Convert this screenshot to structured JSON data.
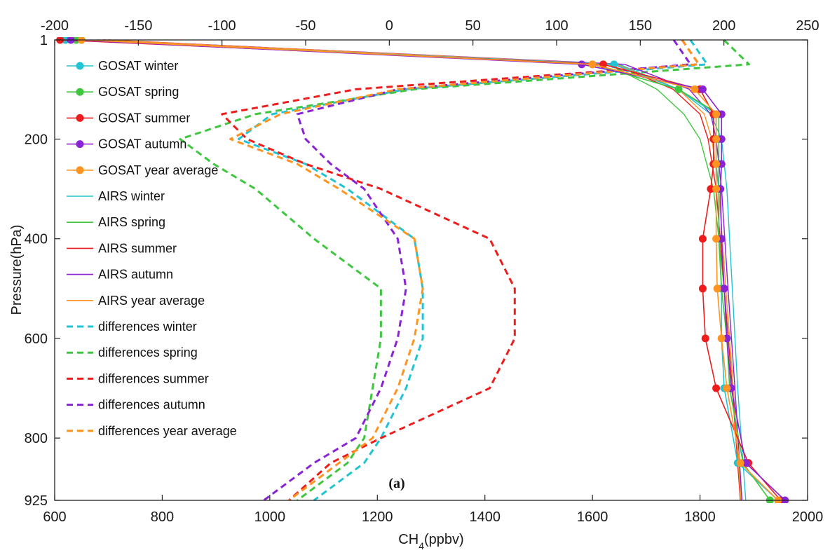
{
  "chart_data": {
    "type": "line",
    "panel_label": "(a)",
    "xlabel_main": "CH",
    "xlabel_sub": "4",
    "xlabel_unit": "(ppbv)",
    "ylabel": "Pressure(hPa)",
    "x_bottom": {
      "lim": [
        600,
        2000
      ],
      "ticks": [
        "600",
        "800",
        "1000",
        "1200",
        "1400",
        "1600",
        "1800",
        "2000"
      ]
    },
    "x_top": {
      "lim": [
        -200,
        250
      ],
      "ticks": [
        "-200",
        "-150",
        "-100",
        "-50",
        "0",
        "50",
        "100",
        "150",
        "200",
        "250"
      ]
    },
    "y": {
      "lim": [
        1,
        925
      ],
      "reversed": true,
      "ticks": [
        "1",
        "200",
        "400",
        "600",
        "800",
        "925"
      ]
    },
    "grid": false,
    "legend_position": "upper-left inside",
    "colors": {
      "winter": "#22c4d4",
      "spring": "#3fc63f",
      "summer": "#ee1c1c",
      "autumn": "#8a22d6",
      "year": "#ff9421"
    },
    "series": [
      {
        "name": "GOSAT winter",
        "axis": "bottom",
        "style": "marker",
        "color": "#22c4d4",
        "x": [
          620,
          1640,
          1760,
          1830,
          1830,
          1830,
          1835,
          1835,
          1840,
          1840,
          1845,
          1870,
          1945
        ],
        "y": [
          1,
          50,
          100,
          150,
          200,
          250,
          300,
          400,
          500,
          600,
          700,
          850,
          925
        ]
      },
      {
        "name": "GOSAT spring",
        "axis": "bottom",
        "style": "marker",
        "color": "#3fc63f",
        "x": [
          640,
          1600,
          1760,
          1835,
          1835,
          1835,
          1835,
          1835,
          1840,
          1850,
          1855,
          1880,
          1930
        ],
        "y": [
          1,
          50,
          100,
          150,
          200,
          250,
          300,
          400,
          500,
          600,
          700,
          850,
          925
        ]
      },
      {
        "name": "GOSAT summer",
        "axis": "bottom",
        "style": "marker",
        "color": "#ee1c1c",
        "x": [
          610,
          1620,
          1800,
          1825,
          1825,
          1825,
          1820,
          1805,
          1805,
          1810,
          1830,
          1890,
          1950
        ],
        "y": [
          1,
          50,
          100,
          150,
          200,
          250,
          300,
          400,
          500,
          600,
          700,
          850,
          925
        ]
      },
      {
        "name": "GOSAT autumn",
        "axis": "bottom",
        "style": "marker",
        "color": "#8a22d6",
        "x": [
          630,
          1580,
          1805,
          1840,
          1840,
          1840,
          1838,
          1840,
          1845,
          1850,
          1858,
          1885,
          1958
        ],
        "y": [
          1,
          50,
          100,
          150,
          200,
          250,
          300,
          400,
          500,
          600,
          700,
          850,
          925
        ]
      },
      {
        "name": "GOSAT year average",
        "axis": "bottom",
        "style": "marker",
        "color": "#ff9421",
        "x": [
          650,
          1600,
          1790,
          1830,
          1830,
          1830,
          1830,
          1830,
          1832,
          1840,
          1850,
          1875,
          1945
        ],
        "y": [
          1,
          50,
          100,
          150,
          200,
          250,
          300,
          400,
          500,
          600,
          700,
          850,
          925
        ]
      },
      {
        "name": "AIRS winter",
        "axis": "bottom",
        "style": "solid",
        "color": "#22c4d4",
        "x": [
          680,
          1650,
          1760,
          1820,
          1840,
          1850,
          1860,
          1870,
          1885
        ],
        "y": [
          1,
          50,
          100,
          150,
          200,
          300,
          500,
          700,
          925
        ]
      },
      {
        "name": "AIRS spring",
        "axis": "bottom",
        "style": "solid",
        "color": "#3fc63f",
        "x": [
          690,
          1630,
          1720,
          1770,
          1800,
          1825,
          1845,
          1860,
          1878
        ],
        "y": [
          1,
          50,
          100,
          150,
          200,
          300,
          500,
          700,
          925
        ]
      },
      {
        "name": "AIRS summer",
        "axis": "bottom",
        "style": "solid",
        "color": "#ee1c1c",
        "x": [
          700,
          1640,
          1750,
          1800,
          1815,
          1830,
          1845,
          1860,
          1875
        ],
        "y": [
          1,
          50,
          100,
          150,
          200,
          300,
          500,
          700,
          925
        ]
      },
      {
        "name": "AIRS autumn",
        "axis": "bottom",
        "style": "solid",
        "color": "#8a22d6",
        "x": [
          690,
          1660,
          1780,
          1820,
          1830,
          1840,
          1852,
          1865,
          1878
        ],
        "y": [
          1,
          50,
          100,
          150,
          200,
          300,
          500,
          700,
          925
        ]
      },
      {
        "name": "AIRS year average",
        "axis": "bottom",
        "style": "solid",
        "color": "#ff9421",
        "x": [
          690,
          1645,
          1760,
          1808,
          1822,
          1835,
          1848,
          1862,
          1876
        ],
        "y": [
          1,
          50,
          100,
          150,
          200,
          300,
          500,
          700,
          925
        ]
      },
      {
        "name": "differences winter",
        "axis": "top",
        "style": "dashed",
        "color": "#22c4d4",
        "x": [
          180,
          190,
          10,
          -70,
          -90,
          -50,
          -25,
          15,
          20,
          20,
          10,
          -5,
          -15,
          -45
        ],
        "y": [
          1,
          50,
          100,
          150,
          200,
          250,
          300,
          400,
          500,
          600,
          700,
          800,
          850,
          925
        ]
      },
      {
        "name": "differences spring",
        "axis": "top",
        "style": "dashed",
        "color": "#3fc63f",
        "x": [
          200,
          215,
          15,
          -80,
          -125,
          -105,
          -80,
          -45,
          -5,
          -5,
          -10,
          -15,
          -25,
          -55
        ],
        "y": [
          1,
          50,
          100,
          150,
          200,
          250,
          300,
          400,
          500,
          600,
          700,
          800,
          850,
          925
        ]
      },
      {
        "name": "differences summer",
        "axis": "top",
        "style": "dashed",
        "color": "#ee1c1c",
        "x": [
          175,
          185,
          -20,
          -100,
          -85,
          -50,
          -5,
          60,
          75,
          75,
          60,
          -5,
          -35,
          -60
        ],
        "y": [
          1,
          50,
          100,
          150,
          200,
          250,
          300,
          400,
          500,
          600,
          700,
          800,
          850,
          925
        ]
      },
      {
        "name": "differences autumn",
        "axis": "top",
        "style": "dashed",
        "color": "#8a22d6",
        "x": [
          170,
          180,
          5,
          -55,
          -50,
          -35,
          -15,
          5,
          10,
          5,
          -5,
          -20,
          -45,
          -75
        ],
        "y": [
          1,
          50,
          100,
          150,
          200,
          250,
          300,
          400,
          500,
          600,
          700,
          800,
          850,
          925
        ]
      },
      {
        "name": "differences year average",
        "axis": "top",
        "style": "dashed",
        "color": "#ff9421",
        "x": [
          175,
          185,
          5,
          -65,
          -95,
          -55,
          -30,
          15,
          20,
          15,
          5,
          -10,
          -30,
          -60
        ],
        "y": [
          1,
          50,
          100,
          150,
          200,
          250,
          300,
          400,
          500,
          600,
          700,
          800,
          850,
          925
        ]
      }
    ]
  }
}
